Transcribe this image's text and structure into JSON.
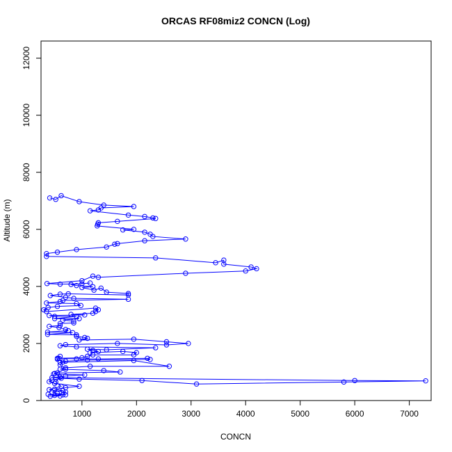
{
  "chart_data": {
    "type": "line",
    "title": "ORCAS RF08miz2 CONCN (Log)",
    "xlabel": "CONCN",
    "ylabel": "Altitude (m)",
    "xlim": [
      250,
      7400
    ],
    "ylim": [
      0,
      12600
    ],
    "x_ticks": [
      "1000",
      "2000",
      "3000",
      "4000",
      "5000",
      "6000",
      "7000"
    ],
    "y_ticks": [
      "0",
      "2000",
      "4000",
      "6000",
      "8000",
      "10000",
      "12000"
    ],
    "x_tick_values": [
      1000,
      2000,
      3000,
      4000,
      5000,
      6000,
      7000
    ],
    "y_tick_values": [
      0,
      2000,
      4000,
      6000,
      8000,
      10000,
      12000
    ],
    "series_color": "#0000ff",
    "marker": "open-circle",
    "series": [
      {
        "points": [
          [
            410,
            7100
          ],
          [
            520,
            7050
          ],
          [
            620,
            7180
          ],
          [
            950,
            6970
          ],
          [
            1400,
            6850
          ],
          [
            1950,
            6800
          ],
          [
            1350,
            6750
          ],
          [
            1300,
            6680
          ],
          [
            1150,
            6650
          ],
          [
            1850,
            6500
          ],
          [
            2150,
            6450
          ],
          [
            2300,
            6400
          ],
          [
            2350,
            6380
          ],
          [
            1650,
            6280
          ],
          [
            1300,
            6230
          ],
          [
            1290,
            6180
          ],
          [
            1280,
            6120
          ],
          [
            1950,
            6000
          ],
          [
            1750,
            5980
          ],
          [
            2150,
            5900
          ],
          [
            2250,
            5830
          ],
          [
            2300,
            5750
          ],
          [
            2900,
            5660
          ],
          [
            2150,
            5600
          ],
          [
            1650,
            5500
          ],
          [
            1600,
            5480
          ],
          [
            1450,
            5380
          ],
          [
            900,
            5290
          ],
          [
            550,
            5200
          ],
          [
            350,
            5150
          ],
          [
            350,
            5050
          ],
          [
            2350,
            5000
          ],
          [
            3450,
            4830
          ],
          [
            3600,
            4920
          ],
          [
            3600,
            4780
          ],
          [
            4100,
            4680
          ],
          [
            4200,
            4620
          ],
          [
            4000,
            4540
          ],
          [
            2900,
            4460
          ],
          [
            1300,
            4320
          ],
          [
            1200,
            4360
          ],
          [
            1000,
            4200
          ],
          [
            360,
            4100
          ],
          [
            600,
            4080
          ],
          [
            1000,
            4090
          ],
          [
            1150,
            4120
          ],
          [
            800,
            4070
          ],
          [
            900,
            4030
          ],
          [
            1200,
            3990
          ],
          [
            1000,
            3960
          ],
          [
            1220,
            3870
          ],
          [
            1350,
            3940
          ],
          [
            1450,
            3800
          ],
          [
            1850,
            3750
          ],
          [
            1850,
            3700
          ],
          [
            750,
            3740
          ],
          [
            600,
            3730
          ],
          [
            420,
            3680
          ],
          [
            700,
            3620
          ],
          [
            850,
            3580
          ],
          [
            1850,
            3550
          ],
          [
            650,
            3510
          ],
          [
            600,
            3470
          ],
          [
            350,
            3420
          ],
          [
            900,
            3400
          ],
          [
            980,
            3330
          ],
          [
            550,
            3300
          ],
          [
            380,
            3260
          ],
          [
            300,
            3180
          ],
          [
            350,
            3120
          ],
          [
            1250,
            3240
          ],
          [
            1300,
            3180
          ],
          [
            1250,
            3120
          ],
          [
            1200,
            3060
          ],
          [
            800,
            3020
          ],
          [
            1050,
            3000
          ],
          [
            400,
            2980
          ],
          [
            500,
            2950
          ],
          [
            900,
            2950
          ],
          [
            500,
            2870
          ],
          [
            950,
            2870
          ],
          [
            650,
            2820
          ],
          [
            850,
            2780
          ],
          [
            850,
            2720
          ],
          [
            600,
            2700
          ],
          [
            600,
            2630
          ],
          [
            400,
            2600
          ],
          [
            580,
            2560
          ],
          [
            700,
            2490
          ],
          [
            750,
            2450
          ],
          [
            370,
            2400
          ],
          [
            830,
            2380
          ],
          [
            370,
            2320
          ],
          [
            900,
            2300
          ],
          [
            900,
            2250
          ],
          [
            1050,
            2210
          ],
          [
            1100,
            2180
          ],
          [
            950,
            2120
          ],
          [
            1950,
            2150
          ],
          [
            2550,
            2060
          ],
          [
            2950,
            2000
          ],
          [
            2550,
            1950
          ],
          [
            1650,
            2000
          ],
          [
            700,
            1960
          ],
          [
            600,
            1920
          ],
          [
            900,
            1880
          ],
          [
            2350,
            1850
          ],
          [
            1450,
            1780
          ],
          [
            1100,
            1800
          ],
          [
            1200,
            1760
          ],
          [
            1300,
            1720
          ],
          [
            1150,
            1680
          ],
          [
            1750,
            1720
          ],
          [
            2000,
            1680
          ],
          [
            1950,
            1600
          ],
          [
            1200,
            1600
          ],
          [
            1100,
            1550
          ],
          [
            1000,
            1500
          ],
          [
            550,
            1480
          ],
          [
            900,
            1460
          ],
          [
            1300,
            1460
          ],
          [
            2200,
            1480
          ],
          [
            2250,
            1440
          ],
          [
            1100,
            1420
          ],
          [
            700,
            1380
          ],
          [
            600,
            1340
          ],
          [
            1950,
            1400
          ],
          [
            2600,
            1200
          ],
          [
            1150,
            1200
          ],
          [
            700,
            1150
          ],
          [
            600,
            1100
          ],
          [
            1400,
            1050
          ],
          [
            1700,
            1000
          ],
          [
            550,
            970
          ],
          [
            480,
            930
          ],
          [
            1050,
            900
          ],
          [
            700,
            860
          ],
          [
            450,
            800
          ],
          [
            6000,
            700
          ],
          [
            7300,
            690
          ],
          [
            5800,
            650
          ],
          [
            3100,
            580
          ],
          [
            2100,
            700
          ],
          [
            950,
            750
          ],
          [
            620,
            780
          ],
          [
            450,
            720
          ],
          [
            400,
            660
          ],
          [
            500,
            600
          ],
          [
            950,
            500
          ],
          [
            700,
            450
          ],
          [
            500,
            400
          ],
          [
            650,
            350
          ],
          [
            450,
            300
          ],
          [
            550,
            250
          ],
          [
            700,
            200
          ],
          [
            380,
            220
          ],
          [
            500,
            180
          ],
          [
            600,
            160
          ],
          [
            420,
            150
          ],
          [
            650,
            200
          ],
          [
            700,
            300
          ],
          [
            400,
            380
          ],
          [
            620,
            500
          ],
          [
            520,
            650
          ],
          [
            600,
            820
          ],
          [
            500,
            950
          ],
          [
            700,
            1100
          ],
          [
            600,
            1250
          ],
          [
            650,
            1350
          ],
          [
            550,
            1450
          ],
          [
            600,
            1550
          ],
          [
            580,
            1480
          ]
        ]
      }
    ]
  }
}
